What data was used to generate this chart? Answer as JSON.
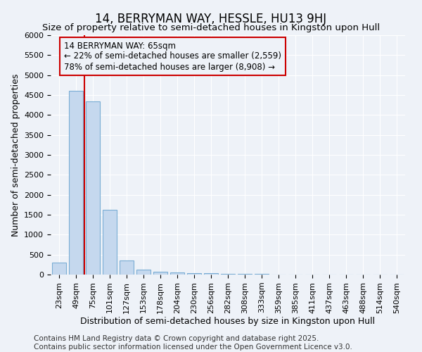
{
  "title": "14, BERRYMAN WAY, HESSLE, HU13 9HJ",
  "subtitle": "Size of property relative to semi-detached houses in Kingston upon Hull",
  "xlabel": "Distribution of semi-detached houses by size in Kingston upon Hull",
  "ylabel": "Number of semi-detached properties",
  "footnote": "Contains HM Land Registry data © Crown copyright and database right 2025.\nContains public sector information licensed under the Open Government Licence v3.0.",
  "categories": [
    "23sqm",
    "49sqm",
    "75sqm",
    "101sqm",
    "127sqm",
    "153sqm",
    "178sqm",
    "204sqm",
    "230sqm",
    "256sqm",
    "282sqm",
    "308sqm",
    "333sqm",
    "359sqm",
    "385sqm",
    "411sqm",
    "437sqm",
    "463sqm",
    "488sqm",
    "514sqm",
    "540sqm"
  ],
  "values": [
    300,
    4600,
    4350,
    1630,
    350,
    120,
    75,
    55,
    40,
    30,
    25,
    20,
    10,
    5,
    3,
    2,
    2,
    1,
    1,
    1,
    1
  ],
  "bar_color": "#c5d8ee",
  "bar_edge_color": "#7aadd4",
  "ylim": [
    0,
    6000
  ],
  "yticks": [
    0,
    500,
    1000,
    1500,
    2000,
    2500,
    3000,
    3500,
    4000,
    4500,
    5000,
    5500,
    6000
  ],
  "property_label": "14 BERRYMAN WAY: 65sqm",
  "pct_smaller": 22,
  "pct_larger": 78,
  "count_smaller": 2559,
  "count_larger": 8908,
  "annotation_box_color": "#cc0000",
  "vline_color": "#cc0000",
  "background_color": "#eef2f8",
  "plot_bg_color": "#eef2f8",
  "grid_color": "#ffffff",
  "title_fontsize": 12,
  "subtitle_fontsize": 9.5,
  "axis_label_fontsize": 9,
  "tick_fontsize": 8,
  "annotation_fontsize": 8.5,
  "footnote_fontsize": 7.5,
  "vline_x": 1.5
}
